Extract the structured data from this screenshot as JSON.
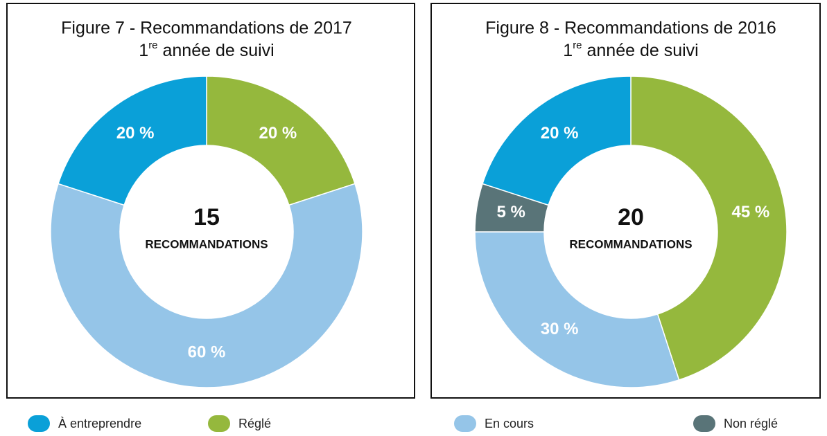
{
  "chart_data": [
    {
      "type": "donut",
      "title": "Figure 7 - Recommandations de 2017",
      "subtitle": [
        "1",
        "re",
        " année de suivi"
      ],
      "center_value": 15,
      "center_label": "RECOMMANDATIONS",
      "categories": [
        "Réglé",
        "En cours",
        "À entreprendre"
      ],
      "values": [
        20,
        60,
        20
      ],
      "value_labels": [
        "20 %",
        "60 %",
        "20 %"
      ]
    },
    {
      "type": "donut",
      "title": "Figure 8 - Recommandations de 2016",
      "subtitle": [
        "1",
        "re",
        " année de suivi"
      ],
      "center_value": 20,
      "center_label": "RECOMMANDATIONS",
      "categories": [
        "Réglé",
        "En cours",
        "Non réglé",
        "À entreprendre"
      ],
      "values": [
        45,
        30,
        5,
        20
      ],
      "value_labels": [
        "45 %",
        "30 %",
        "5 %",
        "20 %"
      ]
    }
  ],
  "legend": [
    {
      "name": "À entreprendre",
      "color": "#0aa0d8"
    },
    {
      "name": "Réglé",
      "color": "#95b83d"
    },
    {
      "name": "En cours",
      "color": "#95c5e8"
    },
    {
      "name": "Non réglé",
      "color": "#597478"
    }
  ]
}
